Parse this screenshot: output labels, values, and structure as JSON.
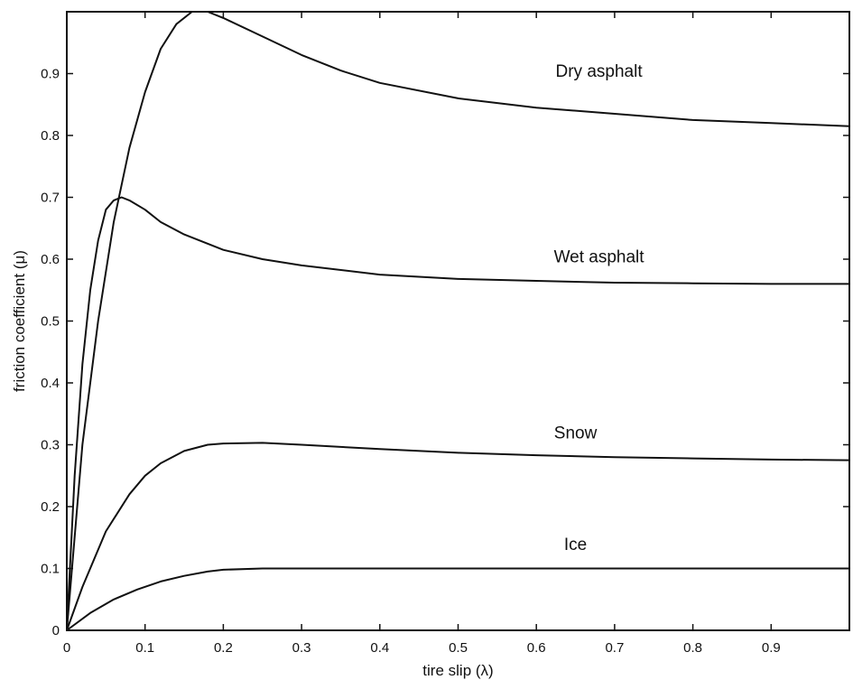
{
  "chart_data": {
    "type": "line",
    "xlabel": "tire slip (λ)",
    "ylabel": "friction coefficient (μ)",
    "xlim": [
      0,
      1.0
    ],
    "ylim": [
      0,
      1.0
    ],
    "xticks": [
      "0",
      "0.1",
      "0.2",
      "0.3",
      "0.4",
      "0.5",
      "0.6",
      "0.7",
      "0.8",
      "0.9"
    ],
    "xtick_values": [
      0,
      0.1,
      0.2,
      0.3,
      0.4,
      0.5,
      0.6,
      0.7,
      0.8,
      0.9
    ],
    "yticks": [
      "0",
      "0.1",
      "0.2",
      "0.3",
      "0.4",
      "0.5",
      "0.6",
      "0.7",
      "0.8",
      "0.9"
    ],
    "ytick_values": [
      0,
      0.1,
      0.2,
      0.3,
      0.4,
      0.5,
      0.6,
      0.7,
      0.8,
      0.9
    ],
    "grid": false,
    "legend": "none",
    "series": [
      {
        "name": "Dry asphalt",
        "x": [
          0,
          0.02,
          0.04,
          0.06,
          0.08,
          0.1,
          0.12,
          0.14,
          0.16,
          0.18,
          0.2,
          0.25,
          0.3,
          0.35,
          0.4,
          0.5,
          0.6,
          0.7,
          0.8,
          0.9,
          1.0
        ],
        "y": [
          0,
          0.3,
          0.5,
          0.66,
          0.78,
          0.87,
          0.94,
          0.98,
          1.0,
          1.0,
          0.99,
          0.96,
          0.93,
          0.905,
          0.885,
          0.86,
          0.845,
          0.835,
          0.825,
          0.82,
          0.815
        ]
      },
      {
        "name": "Wet asphalt",
        "x": [
          0,
          0.01,
          0.02,
          0.03,
          0.04,
          0.05,
          0.06,
          0.07,
          0.08,
          0.1,
          0.12,
          0.15,
          0.2,
          0.25,
          0.3,
          0.4,
          0.5,
          0.6,
          0.7,
          0.8,
          0.9,
          1.0
        ],
        "y": [
          0,
          0.25,
          0.43,
          0.55,
          0.63,
          0.68,
          0.695,
          0.7,
          0.695,
          0.68,
          0.66,
          0.64,
          0.615,
          0.6,
          0.59,
          0.575,
          0.568,
          0.565,
          0.562,
          0.561,
          0.56,
          0.56
        ]
      },
      {
        "name": "Snow",
        "x": [
          0,
          0.02,
          0.05,
          0.08,
          0.1,
          0.12,
          0.15,
          0.18,
          0.2,
          0.25,
          0.3,
          0.4,
          0.5,
          0.6,
          0.7,
          0.8,
          0.9,
          1.0
        ],
        "y": [
          0,
          0.07,
          0.16,
          0.22,
          0.25,
          0.27,
          0.29,
          0.3,
          0.302,
          0.303,
          0.3,
          0.293,
          0.287,
          0.283,
          0.28,
          0.278,
          0.276,
          0.275
        ]
      },
      {
        "name": "Ice",
        "x": [
          0,
          0.03,
          0.06,
          0.09,
          0.12,
          0.15,
          0.18,
          0.2,
          0.25,
          0.3,
          0.4,
          0.5,
          0.6,
          0.7,
          0.8,
          0.9,
          1.0
        ],
        "y": [
          0,
          0.028,
          0.05,
          0.066,
          0.079,
          0.088,
          0.095,
          0.098,
          0.1,
          0.1,
          0.1,
          0.1,
          0.1,
          0.1,
          0.1,
          0.1,
          0.1
        ]
      }
    ],
    "annotations": [
      {
        "text": "Dry asphalt",
        "x": 0.68,
        "y": 0.895
      },
      {
        "text": "Wet asphalt",
        "x": 0.68,
        "y": 0.595
      },
      {
        "text": "Snow",
        "x": 0.65,
        "y": 0.31
      },
      {
        "text": "Ice",
        "x": 0.65,
        "y": 0.13
      }
    ]
  }
}
